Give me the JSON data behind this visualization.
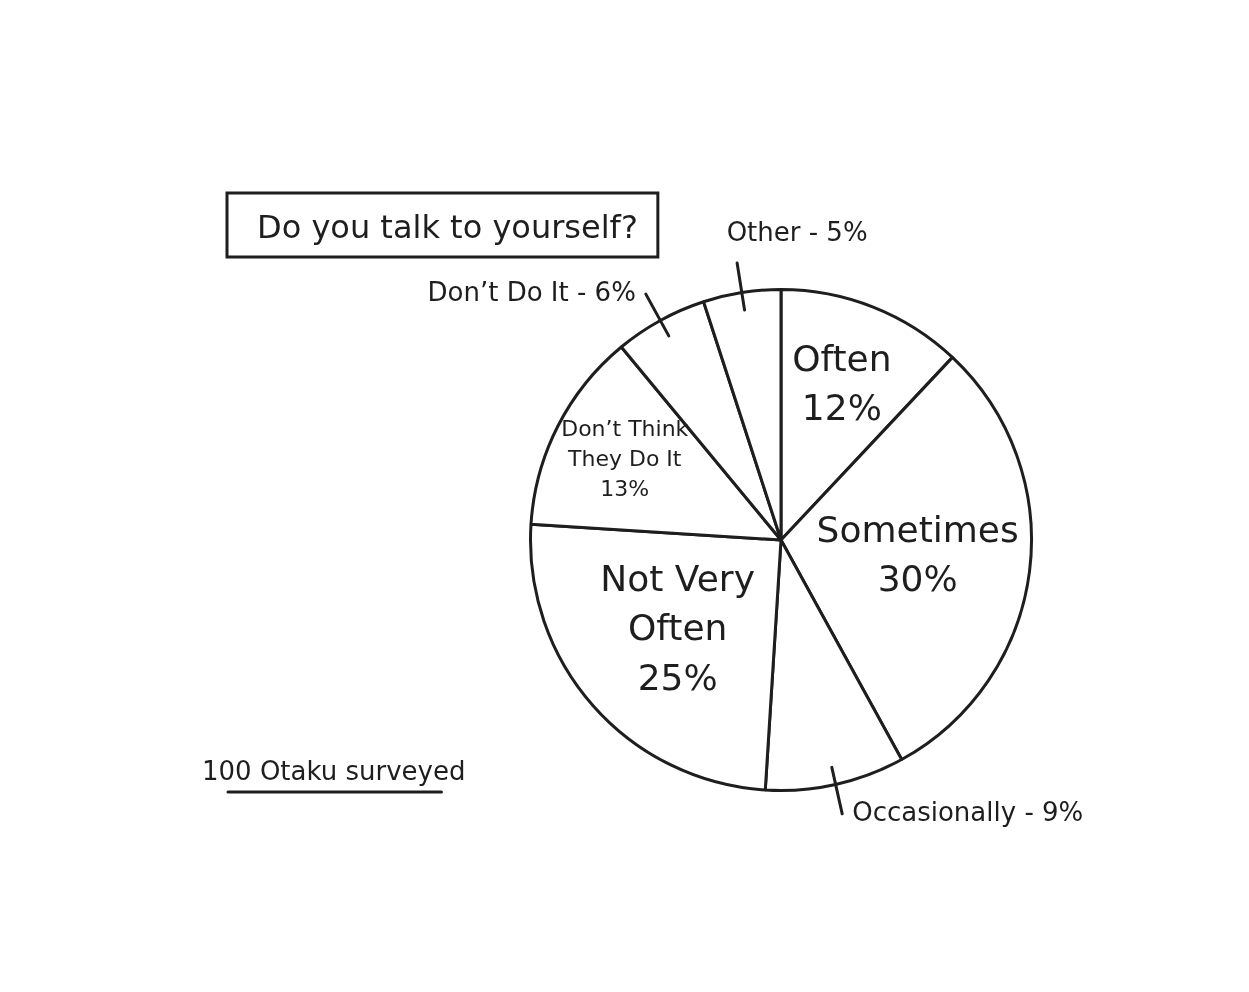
{
  "chart_data": {
    "type": "pie",
    "title": "Do you talk to yourself?",
    "categories": [
      "Often",
      "Sometimes",
      "Occasionally",
      "Not Very Often",
      "Don’t Think They Do It",
      "Don’t Do It",
      "Other"
    ],
    "values": [
      12,
      30,
      9,
      25,
      13,
      6,
      5
    ],
    "colors": [
      "#ffffff",
      "#ffffff",
      "#ffffff",
      "#ffffff",
      "#ffffff",
      "#ffffff",
      "#ffffff"
    ],
    "value_labels": [
      "12%",
      "30%",
      "9%",
      "25%",
      "13%",
      "6%",
      "5%"
    ],
    "annotations": [
      "100 Otaku surveyed"
    ]
  }
}
